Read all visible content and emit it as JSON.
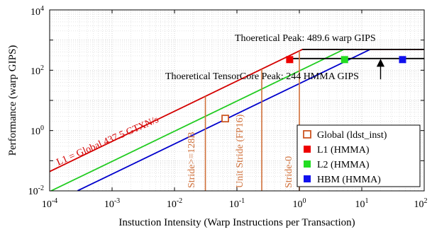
{
  "chart_data": {
    "type": "line",
    "title": "",
    "xlabel": "Instuction Intensity (Warp Instructions per Transaction)",
    "ylabel": "Performance (warp GIPS)",
    "xscale": "log",
    "yscale": "log",
    "xlim": [
      0.0001,
      100
    ],
    "ylim": [
      0.01,
      10000
    ],
    "grid": true,
    "x_ticks": [
      {
        "value": 0.0001,
        "base": "10",
        "exp": "-4"
      },
      {
        "value": 0.001,
        "base": "10",
        "exp": "-3"
      },
      {
        "value": 0.01,
        "base": "10",
        "exp": "-2"
      },
      {
        "value": 0.1,
        "base": "10",
        "exp": "-1"
      },
      {
        "value": 1,
        "base": "10",
        "exp": "0"
      },
      {
        "value": 10,
        "base": "10",
        "exp": "1"
      },
      {
        "value": 100,
        "base": "10",
        "exp": "2"
      }
    ],
    "y_ticks": [
      {
        "value": 0.01,
        "base": "10",
        "exp": "-2"
      },
      {
        "value": 1,
        "base": "10",
        "exp": "0"
      },
      {
        "value": 100,
        "base": "10",
        "exp": "2"
      },
      {
        "value": 10000,
        "base": "10",
        "exp": "4"
      }
    ],
    "rooflines": [
      {
        "label": "L1 = Global 437.5 GTXN/s",
        "bandwidth": 437.5,
        "color": "#d40000",
        "x_start": 0.0001
      },
      {
        "label": "",
        "bandwidth": 95,
        "color": "#22cc22",
        "x_start": 0.000105
      },
      {
        "label": "",
        "bandwidth": 36,
        "color": "#0000cc",
        "x_start": 0.00028
      }
    ],
    "ceilings": [
      {
        "label": "Thoeretical Peak: 489.6 warp GIPS",
        "value": 489.6,
        "color": "#000000"
      },
      {
        "label": "Thoeretical TensorCore Peak: 244 HMMA GIPS",
        "value": 244,
        "color": "#000000"
      }
    ],
    "stride_lines": [
      {
        "label": "Stride>=128B",
        "x": 0.03125,
        "color": "#d0703a"
      },
      {
        "label": "Unit Stride (FP16)",
        "x": 0.25,
        "color": "#d0703a"
      },
      {
        "label": "Stride-0",
        "x": 1,
        "color": "#d0703a"
      }
    ],
    "series": [
      {
        "name": "Global (ldst_inst)",
        "color": "#cc5522",
        "marker": "hollow-square",
        "points": [
          {
            "x": 0.065,
            "y": 2.5
          }
        ]
      },
      {
        "name": "L1 (HMMA)",
        "color": "#ee0000",
        "marker": "filled-square",
        "points": [
          {
            "x": 0.7,
            "y": 225
          }
        ]
      },
      {
        "name": "L2 (HMMA)",
        "color": "#22dd22",
        "marker": "filled-square",
        "points": [
          {
            "x": 5.3,
            "y": 225
          }
        ]
      },
      {
        "name": "HBM (HMMA)",
        "color": "#1111ee",
        "marker": "filled-square",
        "points": [
          {
            "x": 45,
            "y": 225
          }
        ]
      }
    ],
    "annotation_arrow": {
      "x": 20,
      "y_from": 50,
      "y_to": 244
    },
    "legend_position": "bottom-right"
  }
}
